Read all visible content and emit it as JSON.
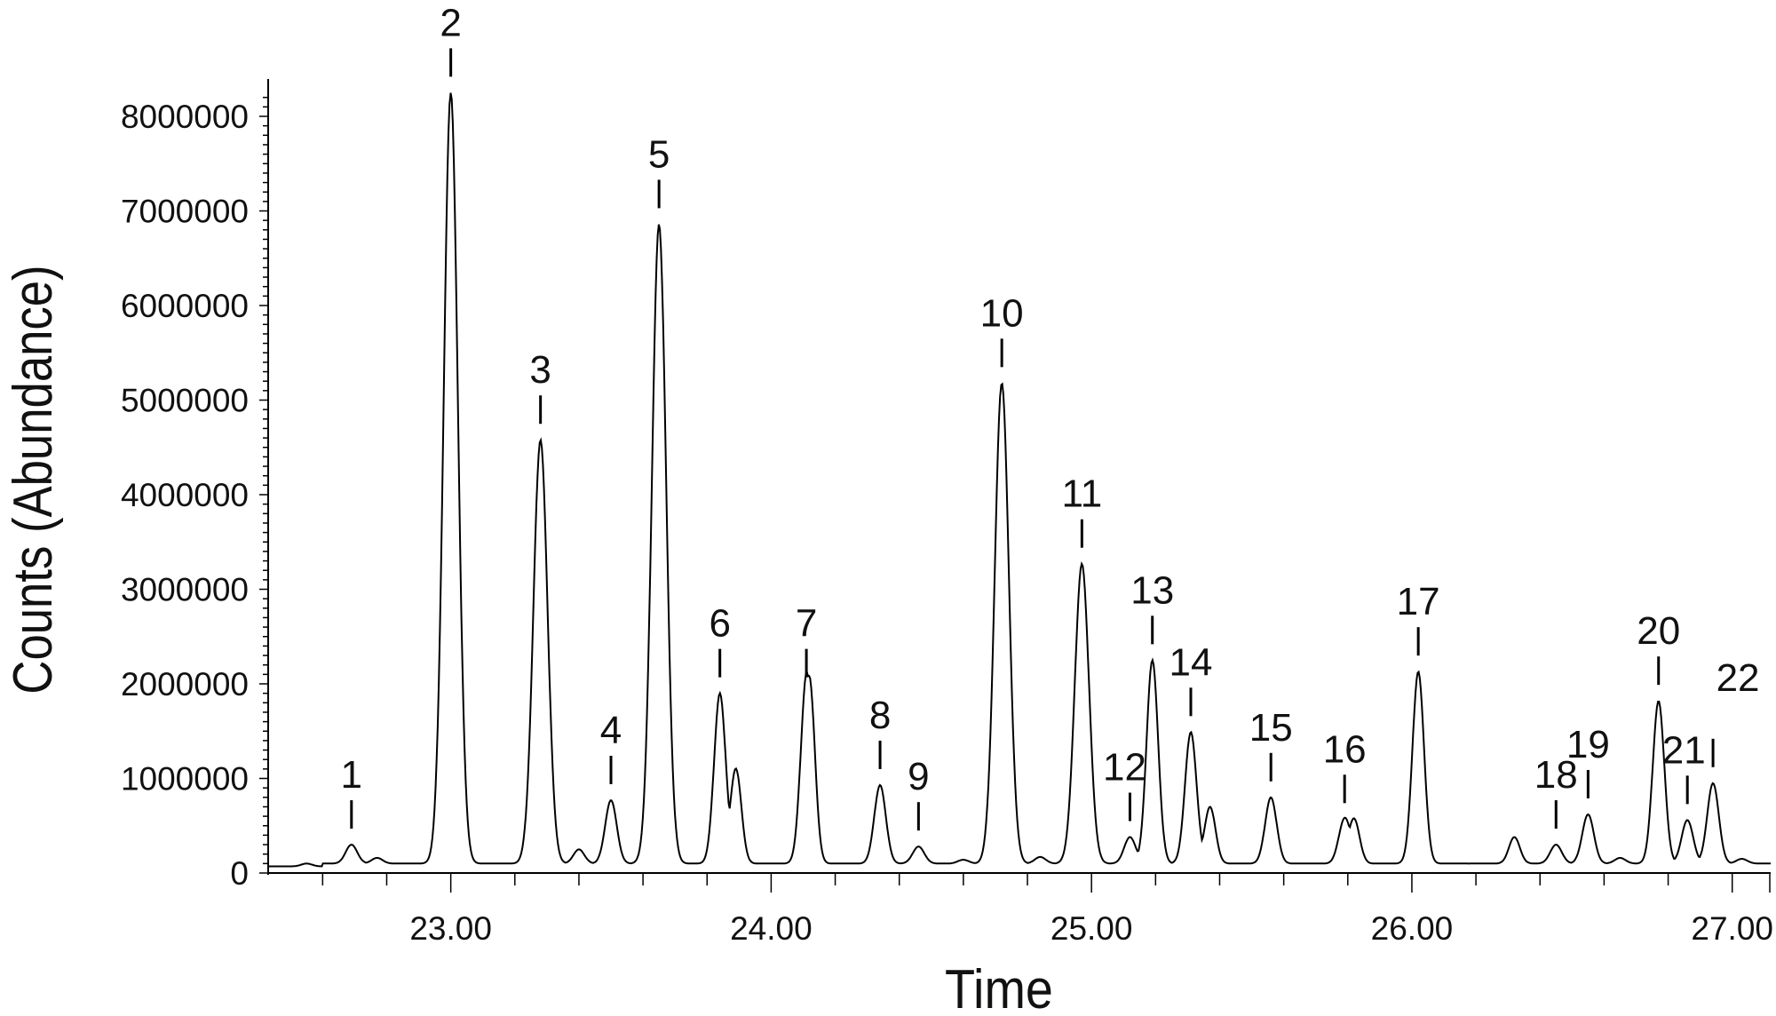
{
  "chart_data": {
    "type": "line",
    "title": "",
    "xlabel": "Time",
    "ylabel": "Counts (Abundance)",
    "xlim": [
      22.43,
      27.12
    ],
    "ylim": [
      0,
      8300000
    ],
    "grid": false,
    "x_ticks": [
      23.0,
      24.0,
      25.0,
      26.0,
      27.0
    ],
    "x_tick_labels": [
      "23.00",
      "24.00",
      "25.00",
      "26.00",
      "27.00"
    ],
    "y_ticks": [
      0,
      1000000,
      2000000,
      3000000,
      4000000,
      5000000,
      6000000,
      7000000,
      8000000
    ],
    "y_tick_labels": [
      "0",
      "1000000",
      "2000000",
      "3000000",
      "4000000",
      "5000000",
      "6000000",
      "7000000",
      "8000000"
    ],
    "baseline": 100000,
    "peaks": [
      {
        "label": "1",
        "time": 22.69,
        "counts": 300000
      },
      {
        "label": "2",
        "time": 23.0,
        "counts": 8250000
      },
      {
        "label": "3",
        "time": 23.28,
        "counts": 4580000
      },
      {
        "label": "4",
        "time": 23.5,
        "counts": 770000
      },
      {
        "label": "5",
        "time": 23.65,
        "counts": 6860000
      },
      {
        "label": "6",
        "time": 23.84,
        "counts": 1900000
      },
      {
        "label": "7",
        "time": 24.11,
        "counts": 1900000
      },
      {
        "label": "8",
        "time": 24.34,
        "counts": 930000
      },
      {
        "label": "9",
        "time": 24.46,
        "counts": 280000
      },
      {
        "label": "10",
        "time": 24.72,
        "counts": 5180000
      },
      {
        "label": "11",
        "time": 24.97,
        "counts": 3270000
      },
      {
        "label": "12",
        "time": 25.12,
        "counts": 380000
      },
      {
        "label": "13",
        "time": 25.19,
        "counts": 2250000
      },
      {
        "label": "14",
        "time": 25.31,
        "counts": 1490000
      },
      {
        "label": "15",
        "time": 25.56,
        "counts": 800000
      },
      {
        "label": "16",
        "time": 25.79,
        "counts": 570000
      },
      {
        "label": "17",
        "time": 26.02,
        "counts": 2130000
      },
      {
        "label": "18",
        "time": 26.45,
        "counts": 300000
      },
      {
        "label": "19",
        "time": 26.55,
        "counts": 620000
      },
      {
        "label": "20",
        "time": 26.77,
        "counts": 1820000
      },
      {
        "label": "21",
        "time": 26.86,
        "counts": 560000
      },
      {
        "label": "22",
        "time": 26.94,
        "counts": 950000
      }
    ],
    "minor_peaks": [
      {
        "time": 22.55,
        "counts": 130000
      },
      {
        "time": 22.77,
        "counts": 160000
      },
      {
        "time": 23.4,
        "counts": 250000
      },
      {
        "time": 23.89,
        "counts": 1100000
      },
      {
        "time": 24.12,
        "counts": 1850000
      },
      {
        "time": 24.6,
        "counts": 140000
      },
      {
        "time": 24.84,
        "counts": 170000
      },
      {
        "time": 25.37,
        "counts": 700000
      },
      {
        "time": 25.82,
        "counts": 560000
      },
      {
        "time": 26.32,
        "counts": 380000
      },
      {
        "time": 26.65,
        "counts": 160000
      },
      {
        "time": 27.03,
        "counts": 150000
      }
    ]
  }
}
